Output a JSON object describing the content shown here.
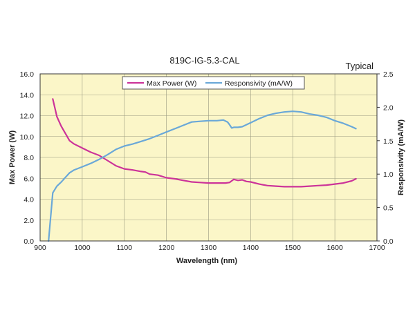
{
  "chart_data": {
    "type": "line",
    "title": "819C-IG-5.3-CAL",
    "annotation": "Typical",
    "xlabel": "Wavelength (nm)",
    "ylabel_left": "Max Power (W)",
    "ylabel_right": "Responsivity (mA/W)",
    "xlim": [
      900,
      1700
    ],
    "ylim_left": [
      0,
      16
    ],
    "ylim_right": [
      0,
      2.5
    ],
    "x_ticks": [
      "900",
      "1000",
      "1100",
      "1200",
      "1300",
      "1400",
      "1500",
      "1600",
      "1700"
    ],
    "y_ticks_left": [
      "0.0",
      "2.0",
      "4.0",
      "6.0",
      "8.0",
      "10.0",
      "12.0",
      "14.0",
      "16.0"
    ],
    "y_ticks_right": [
      "0.0",
      "0.5",
      "1.0",
      "1.5",
      "2.0",
      "2.5"
    ],
    "grid": true,
    "legend_position": "top-center",
    "background_color": "#fbf6c8",
    "series": [
      {
        "name": "Max Power (W)",
        "axis": "left",
        "color": "#cc3399",
        "points": [
          [
            930,
            13.6
          ],
          [
            940,
            11.9
          ],
          [
            950,
            11.0
          ],
          [
            960,
            10.3
          ],
          [
            970,
            9.6
          ],
          [
            980,
            9.3
          ],
          [
            1000,
            8.9
          ],
          [
            1020,
            8.5
          ],
          [
            1040,
            8.2
          ],
          [
            1060,
            7.7
          ],
          [
            1080,
            7.2
          ],
          [
            1100,
            6.9
          ],
          [
            1120,
            6.8
          ],
          [
            1140,
            6.65
          ],
          [
            1150,
            6.6
          ],
          [
            1160,
            6.4
          ],
          [
            1180,
            6.3
          ],
          [
            1200,
            6.05
          ],
          [
            1220,
            5.95
          ],
          [
            1240,
            5.8
          ],
          [
            1260,
            5.65
          ],
          [
            1280,
            5.6
          ],
          [
            1300,
            5.55
          ],
          [
            1320,
            5.55
          ],
          [
            1340,
            5.55
          ],
          [
            1350,
            5.6
          ],
          [
            1360,
            5.9
          ],
          [
            1370,
            5.8
          ],
          [
            1380,
            5.85
          ],
          [
            1390,
            5.7
          ],
          [
            1400,
            5.65
          ],
          [
            1420,
            5.45
          ],
          [
            1440,
            5.3
          ],
          [
            1460,
            5.25
          ],
          [
            1480,
            5.2
          ],
          [
            1500,
            5.2
          ],
          [
            1520,
            5.2
          ],
          [
            1540,
            5.25
          ],
          [
            1560,
            5.3
          ],
          [
            1580,
            5.35
          ],
          [
            1600,
            5.45
          ],
          [
            1620,
            5.55
          ],
          [
            1640,
            5.75
          ],
          [
            1650,
            5.95
          ]
        ]
      },
      {
        "name": "Responsivity (mA/W)",
        "axis": "right",
        "color": "#6aa8d8",
        "points": [
          [
            920,
            0.0
          ],
          [
            930,
            0.72
          ],
          [
            940,
            0.82
          ],
          [
            950,
            0.88
          ],
          [
            960,
            0.95
          ],
          [
            970,
            1.02
          ],
          [
            980,
            1.06
          ],
          [
            1000,
            1.11
          ],
          [
            1020,
            1.16
          ],
          [
            1040,
            1.22
          ],
          [
            1060,
            1.29
          ],
          [
            1080,
            1.37
          ],
          [
            1100,
            1.42
          ],
          [
            1120,
            1.45
          ],
          [
            1140,
            1.49
          ],
          [
            1160,
            1.53
          ],
          [
            1180,
            1.58
          ],
          [
            1200,
            1.63
          ],
          [
            1220,
            1.68
          ],
          [
            1240,
            1.73
          ],
          [
            1260,
            1.78
          ],
          [
            1280,
            1.79
          ],
          [
            1300,
            1.8
          ],
          [
            1320,
            1.8
          ],
          [
            1335,
            1.81
          ],
          [
            1345,
            1.78
          ],
          [
            1350,
            1.74
          ],
          [
            1355,
            1.69
          ],
          [
            1360,
            1.7
          ],
          [
            1370,
            1.7
          ],
          [
            1380,
            1.71
          ],
          [
            1390,
            1.74
          ],
          [
            1400,
            1.77
          ],
          [
            1420,
            1.83
          ],
          [
            1440,
            1.88
          ],
          [
            1460,
            1.91
          ],
          [
            1480,
            1.93
          ],
          [
            1500,
            1.94
          ],
          [
            1520,
            1.93
          ],
          [
            1540,
            1.9
          ],
          [
            1560,
            1.88
          ],
          [
            1580,
            1.85
          ],
          [
            1600,
            1.8
          ],
          [
            1620,
            1.76
          ],
          [
            1640,
            1.71
          ],
          [
            1650,
            1.68
          ]
        ]
      }
    ]
  }
}
